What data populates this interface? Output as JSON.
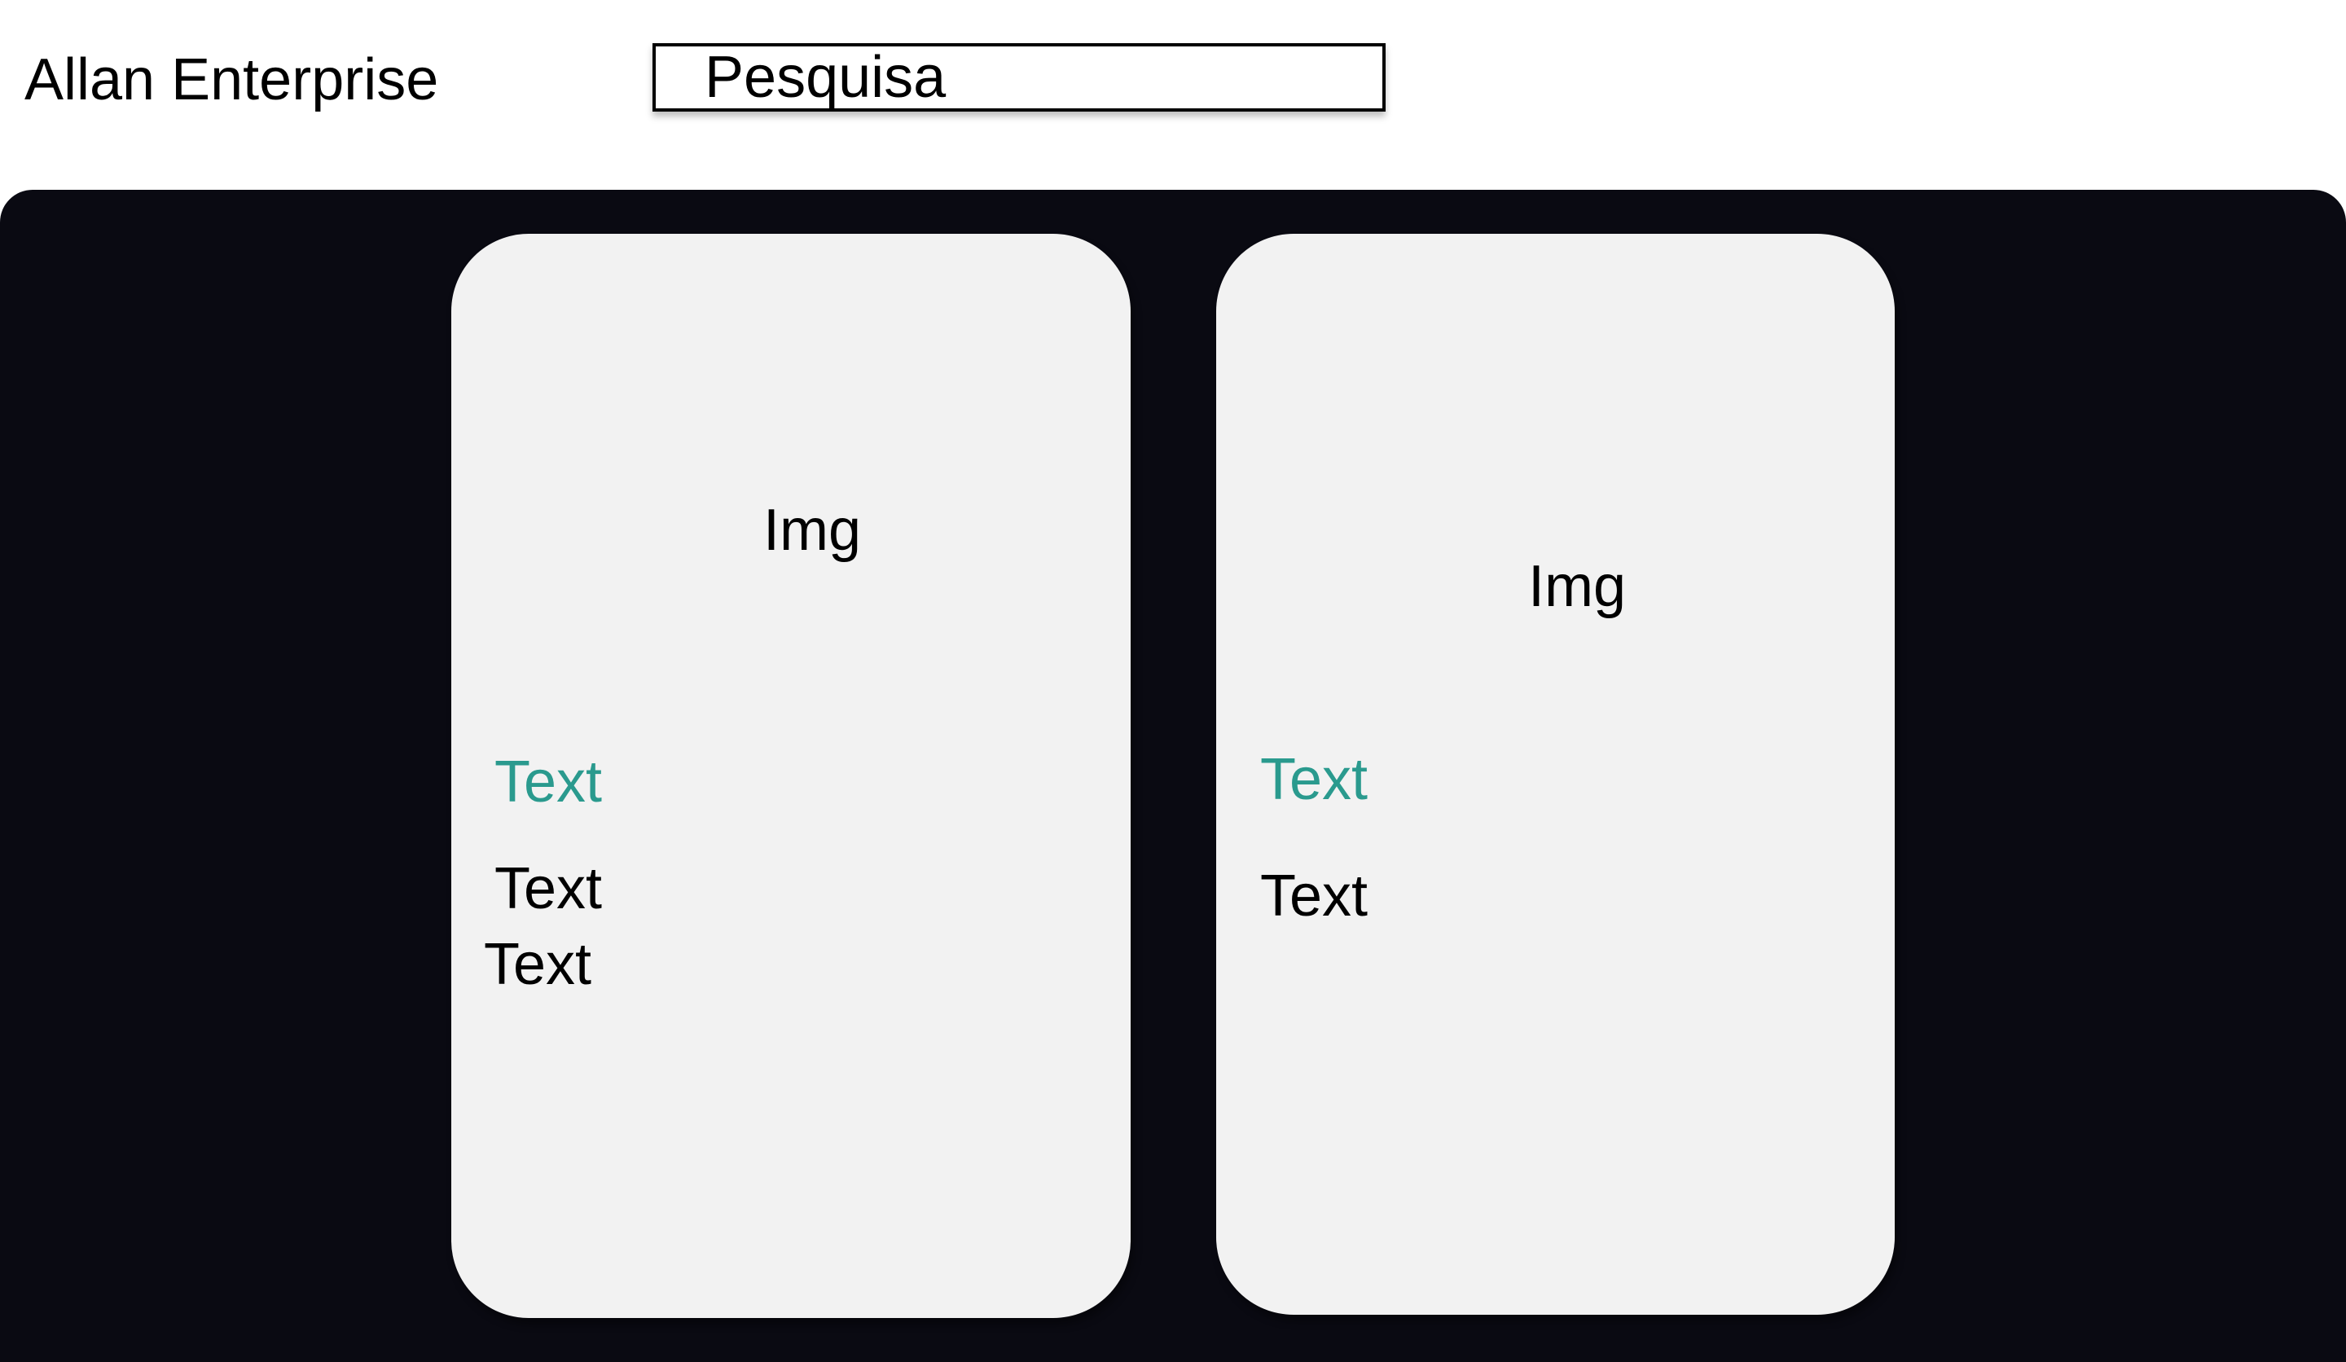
{
  "header": {
    "brand": "Allan Enterprise",
    "search": {
      "placeholder": "Pesquisa",
      "value": ""
    }
  },
  "cards": [
    {
      "image_label": "Img",
      "title": "Text",
      "lines": [
        "Text",
        "Text"
      ]
    },
    {
      "image_label": "Img",
      "title": "Text",
      "lines": [
        "Text"
      ]
    }
  ],
  "colors": {
    "panel_background": "#0a0a12",
    "card_background": "#f2f2f2",
    "accent_text": "#2a9a8e"
  }
}
